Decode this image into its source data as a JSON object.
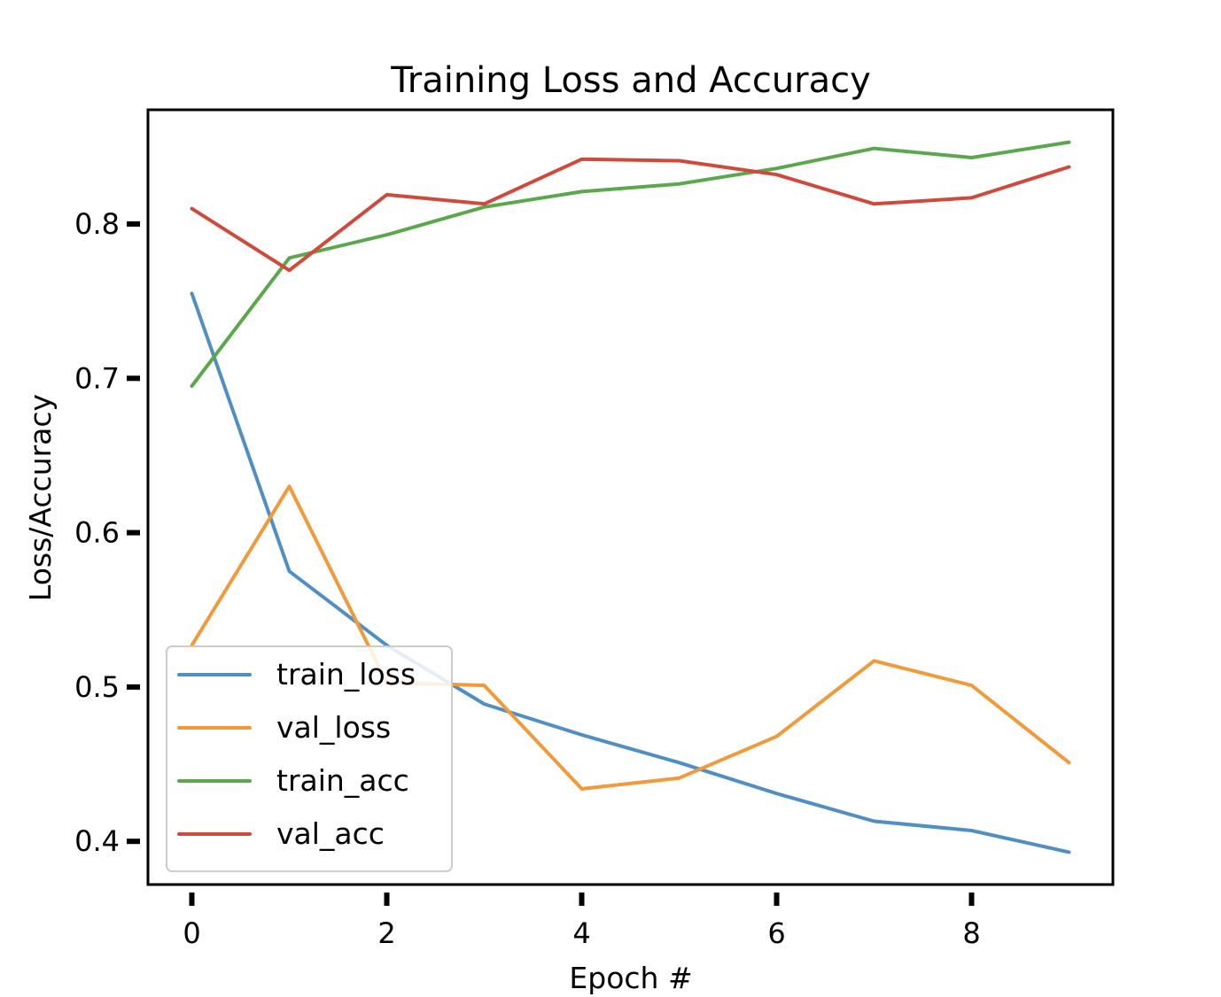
{
  "chart_data": {
    "type": "line",
    "title": "Training Loss and Accuracy",
    "xlabel": "Epoch #",
    "ylabel": "Loss/Accuracy",
    "xlim": [
      -0.45,
      9.45
    ],
    "ylim": [
      0.372,
      0.874
    ],
    "xticks": [
      0,
      2,
      4,
      6,
      8
    ],
    "xtick_labels": [
      "0",
      "2",
      "4",
      "6",
      "8"
    ],
    "yticks": [
      0.4,
      0.5,
      0.6,
      0.7,
      0.8
    ],
    "ytick_labels": [
      "0.4",
      "0.5",
      "0.6",
      "0.7",
      "0.8"
    ],
    "grid": false,
    "legend_position": "lower-left",
    "x": [
      0,
      1,
      2,
      3,
      4,
      5,
      6,
      7,
      8,
      9
    ],
    "series": [
      {
        "name": "train_loss",
        "color": "#4f8fc4",
        "values": [
          0.755,
          0.575,
          0.527,
          0.489,
          0.469,
          0.451,
          0.431,
          0.413,
          0.407,
          0.393
        ]
      },
      {
        "name": "val_loss",
        "color": "#f29a3a",
        "values": [
          0.527,
          0.63,
          0.503,
          0.501,
          0.434,
          0.441,
          0.468,
          0.517,
          0.501,
          0.451
        ]
      },
      {
        "name": "train_acc",
        "color": "#5aa84b",
        "values": [
          0.695,
          0.778,
          0.793,
          0.811,
          0.821,
          0.826,
          0.836,
          0.849,
          0.843,
          0.853
        ]
      },
      {
        "name": "val_acc",
        "color": "#d04a3c",
        "values": [
          0.81,
          0.77,
          0.819,
          0.813,
          0.842,
          0.841,
          0.832,
          0.813,
          0.817,
          0.837
        ]
      }
    ]
  }
}
